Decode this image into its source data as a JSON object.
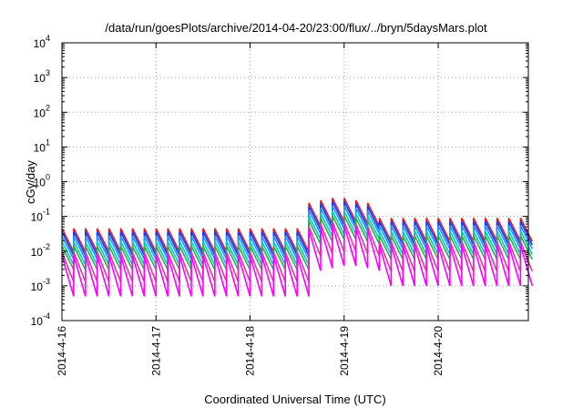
{
  "chart_data": {
    "type": "line",
    "title": "/data/run/goesPlots/archive/2014-04-20/23:00/flux/../bryn/5daysMars.plot",
    "xlabel": "Coordinated Universal Time (UTC)",
    "ylabel": "cGy/day",
    "yscale": "log",
    "xlim": [
      "2014-04-16T00:00",
      "2014-04-20T23:00"
    ],
    "ylim": [
      0.0001,
      10000
    ],
    "x_tick_labels": [
      "2014-4-16",
      "2014-4-17",
      "2014-4-18",
      "2014-4-19",
      "2014-4-20"
    ],
    "y_tick_labels": [
      {
        "base": "10",
        "exp": "-4",
        "value": 0.0001
      },
      {
        "base": "10",
        "exp": "-3",
        "value": 0.001
      },
      {
        "base": "10",
        "exp": "-2",
        "value": 0.01
      },
      {
        "base": "10",
        "exp": "-1",
        "value": 0.1
      },
      {
        "base": "10",
        "exp": "0",
        "value": 1
      },
      {
        "base": "10",
        "exp": "1",
        "value": 10
      },
      {
        "base": "10",
        "exp": "2",
        "value": 100
      },
      {
        "base": "10",
        "exp": "3",
        "value": 1000
      },
      {
        "base": "10",
        "exp": "4",
        "value": 10000
      }
    ],
    "grid": true,
    "legend": "none",
    "sawtooth_period_hours": 3,
    "segments": [
      {
        "start": "2014-04-16T00:00",
        "end": "2014-04-18T15:00",
        "level_factor": 1.0
      },
      {
        "start": "2014-04-18T15:00",
        "end": "2014-04-19T09:00",
        "level_factor": 8.0
      },
      {
        "start": "2014-04-19T09:00",
        "end": "2014-04-20T23:00",
        "level_factor": 2.0
      }
    ],
    "series": [
      {
        "color": "#e41a1c",
        "peak": 0.045,
        "trough": 0.0095
      },
      {
        "color": "#0a3cff",
        "peak": 0.036,
        "trough": 0.0075
      },
      {
        "color": "#1e90ff",
        "peak": 0.027,
        "trough": 0.0058
      },
      {
        "color": "#00c8c8",
        "peak": 0.019,
        "trough": 0.004
      },
      {
        "color": "#20b050",
        "peak": 0.014,
        "trough": 0.0029
      },
      {
        "color": "#d04090",
        "peak": 0.0095,
        "trough": 0.0013
      },
      {
        "color": "#ff00ff",
        "peak": 0.0075,
        "trough": 0.0005
      }
    ]
  }
}
